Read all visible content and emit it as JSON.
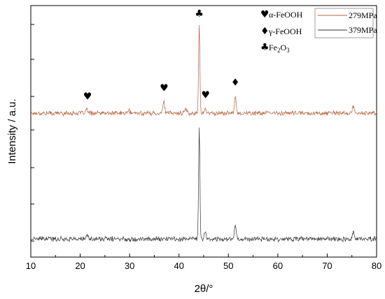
{
  "chart_data": {
    "type": "line",
    "xlabel": "2θ/°",
    "ylabel": "Intensity / a.u.",
    "xlim": [
      10,
      80
    ],
    "x_ticks": [
      "10",
      "20",
      "30",
      "40",
      "50",
      "60",
      "70",
      "80"
    ],
    "y_tick_labels_shown": false,
    "grid": false,
    "legend_position": "top-right",
    "series": [
      {
        "name": "279MPa",
        "color": "#b5603a",
        "offset": "upper",
        "baseline": 0.3,
        "noise": 0.05,
        "peaks": [
          {
            "x": 21.3,
            "height": 0.12
          },
          {
            "x": 29.8,
            "height": 0.08
          },
          {
            "x": 36.9,
            "height": 0.35
          },
          {
            "x": 41.4,
            "height": 0.12
          },
          {
            "x": 44.1,
            "height": 2.45
          },
          {
            "x": 45.3,
            "height": 0.12
          },
          {
            "x": 51.4,
            "height": 0.45
          },
          {
            "x": 75.3,
            "height": 0.18
          }
        ]
      },
      {
        "name": "379MPa",
        "color": "#333333",
        "offset": "lower",
        "baseline": 0.25,
        "noise": 0.05,
        "peaks": [
          {
            "x": 21.5,
            "height": 0.08
          },
          {
            "x": 44.1,
            "height": 2.8
          },
          {
            "x": 45.3,
            "height": 0.18
          },
          {
            "x": 51.4,
            "height": 0.35
          },
          {
            "x": 75.3,
            "height": 0.18
          }
        ]
      }
    ],
    "annotations": [
      {
        "symbol": "♥",
        "x": 21.5,
        "series": "279MPa"
      },
      {
        "symbol": "♥",
        "x": 37.0,
        "series": "279MPa"
      },
      {
        "symbol": "♣",
        "x": 44.1,
        "series": "279MPa"
      },
      {
        "symbol": "♥",
        "x": 45.4,
        "series": "279MPa"
      },
      {
        "symbol": "♦",
        "x": 51.4,
        "series": "279MPa"
      }
    ],
    "phase_legend": [
      {
        "symbol": "♥",
        "label": "α-FeOOH"
      },
      {
        "symbol": "♦",
        "label": "γ-FeOOH"
      },
      {
        "symbol": "♣",
        "label": "Fe",
        "sub1": "2",
        "mid": "O",
        "sub2": "3"
      }
    ]
  }
}
